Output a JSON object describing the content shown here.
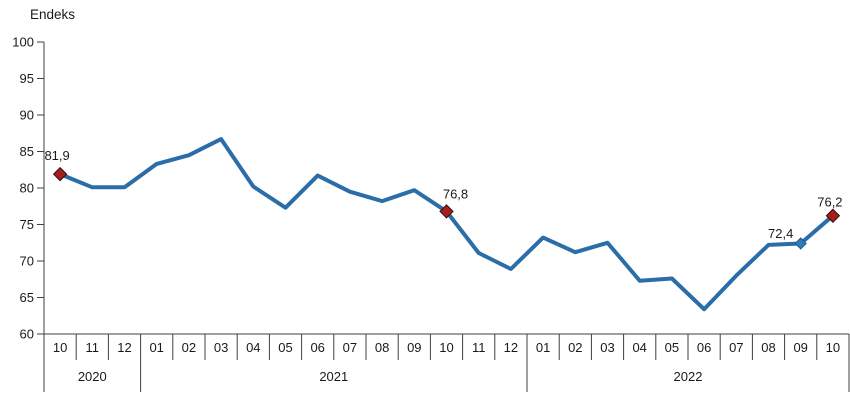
{
  "chart": {
    "title": "Endeks",
    "colors": {
      "line": "#2B6DA9",
      "marker_red_fill": "#A5201D",
      "marker_red_stroke": "#3A0C0C",
      "marker_blue_fill": "#3478BC",
      "marker_blue_stroke": "#1E5A91",
      "axis": "#3f3f3f",
      "text": "#1a1a1a"
    },
    "chart_data": {
      "type": "line",
      "title": "Endeks",
      "ylabel": "Endeks",
      "xlabel": "",
      "ylim": [
        60,
        100
      ],
      "y_ticks": [
        60,
        65,
        70,
        75,
        80,
        85,
        90,
        95,
        100
      ],
      "grid": false,
      "legend": "none",
      "categories": [
        "10",
        "11",
        "12",
        "01",
        "02",
        "03",
        "04",
        "05",
        "06",
        "07",
        "08",
        "09",
        "10",
        "11",
        "12",
        "01",
        "02",
        "03",
        "04",
        "05",
        "06",
        "07",
        "08",
        "09",
        "10"
      ],
      "year_groups": [
        {
          "label": "2020",
          "count": 3
        },
        {
          "label": "2021",
          "count": 12
        },
        {
          "label": "2022",
          "count": 10
        }
      ],
      "series": [
        {
          "name": "Endeks",
          "values": [
            81.9,
            80.1,
            80.1,
            83.3,
            84.5,
            86.7,
            80.2,
            77.3,
            81.7,
            79.5,
            78.2,
            79.7,
            76.8,
            71.1,
            68.9,
            73.2,
            71.2,
            72.5,
            67.3,
            67.6,
            63.4,
            68.0,
            72.2,
            72.4,
            76.2
          ]
        }
      ],
      "annotations": [
        {
          "index": 0,
          "label": "81,9",
          "marker": "red"
        },
        {
          "index": 12,
          "label": "76,8",
          "marker": "red"
        },
        {
          "index": 23,
          "label": "72,4",
          "marker": "blue"
        },
        {
          "index": 24,
          "label": "76,2",
          "marker": "red"
        }
      ]
    }
  }
}
